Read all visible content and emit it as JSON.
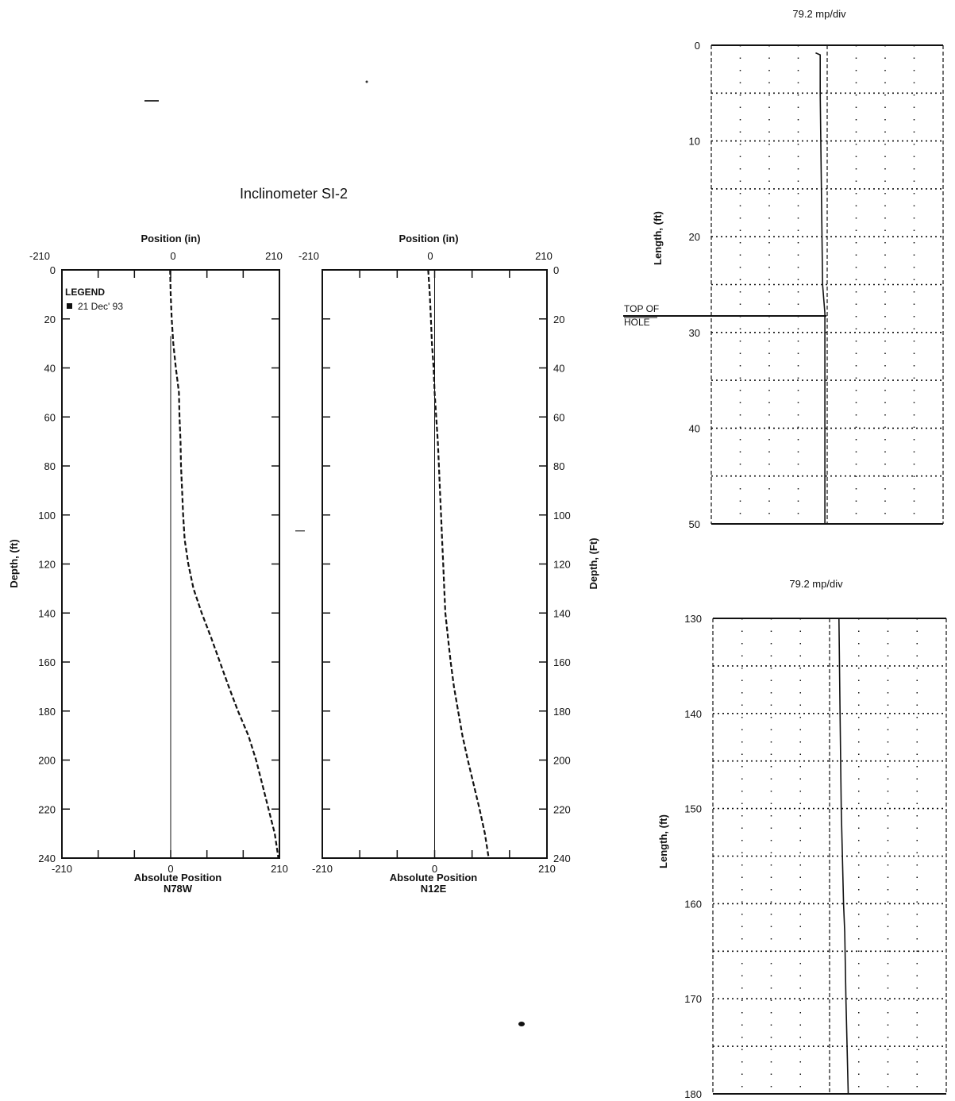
{
  "page": {
    "title": "Inclinometer SI-2"
  },
  "chart_data": [
    {
      "type": "line",
      "panel": "left-inclinometer",
      "top_axis_label": "Position  (in)",
      "ylabel": "Depth,  (ft)",
      "xlabel_lines": [
        "Absolute Position",
        "N78W"
      ],
      "xlim": [
        -210,
        210
      ],
      "ylim": [
        0,
        240
      ],
      "y_inverted": true,
      "x_tick_labels_top": [
        "-210",
        "0",
        "210"
      ],
      "x_tick_labels_bottom": [
        "-210",
        "0",
        "210"
      ],
      "y_tick_labels": [
        "0",
        "20",
        "40",
        "60",
        "80",
        "100",
        "120",
        "140",
        "160",
        "180",
        "200",
        "220",
        "240"
      ],
      "legend": {
        "title": "LEGEND",
        "entries": [
          "21 Dec' 93"
        ],
        "placement": "top-left"
      },
      "series": [
        {
          "name": "21 Dec' 93",
          "style": "dashed",
          "points": [
            {
              "x": -1,
              "y": 0
            },
            {
              "x": 0,
              "y": 10
            },
            {
              "x": 2,
              "y": 20
            },
            {
              "x": 5,
              "y": 30
            },
            {
              "x": 10,
              "y": 40
            },
            {
              "x": 16,
              "y": 50
            },
            {
              "x": 17,
              "y": 60
            },
            {
              "x": 19,
              "y": 70
            },
            {
              "x": 20,
              "y": 80
            },
            {
              "x": 22,
              "y": 90
            },
            {
              "x": 24,
              "y": 100
            },
            {
              "x": 27,
              "y": 110
            },
            {
              "x": 34,
              "y": 120
            },
            {
              "x": 44,
              "y": 130
            },
            {
              "x": 60,
              "y": 140
            },
            {
              "x": 78,
              "y": 150
            },
            {
              "x": 95,
              "y": 160
            },
            {
              "x": 112,
              "y": 170
            },
            {
              "x": 130,
              "y": 180
            },
            {
              "x": 150,
              "y": 190
            },
            {
              "x": 165,
              "y": 200
            },
            {
              "x": 177,
              "y": 210
            },
            {
              "x": 189,
              "y": 220
            },
            {
              "x": 201,
              "y": 230
            },
            {
              "x": 208,
              "y": 240
            }
          ]
        }
      ],
      "reference_line": {
        "x": 0,
        "y_range": [
          27,
          240
        ]
      }
    },
    {
      "type": "line",
      "panel": "middle-inclinometer",
      "top_axis_label": "Position  (in)",
      "ylabel": "Depth,  (Ft)",
      "xlabel_lines": [
        "Absolute Position",
        "N12E"
      ],
      "xlim": [
        -210,
        210
      ],
      "ylim": [
        0,
        240
      ],
      "y_inverted": true,
      "x_tick_labels_top": [
        "-210",
        "0",
        "210"
      ],
      "x_tick_labels_bottom": [
        "-210",
        "0",
        "210"
      ],
      "y_tick_labels": [
        "0",
        "20",
        "40",
        "60",
        "80",
        "100",
        "120",
        "140",
        "160",
        "180",
        "200",
        "220",
        "240"
      ],
      "series": [
        {
          "name": "21 Dec' 93",
          "style": "dashed",
          "points": [
            {
              "x": -12,
              "y": 0
            },
            {
              "x": -9,
              "y": 10
            },
            {
              "x": -7,
              "y": 20
            },
            {
              "x": -5,
              "y": 30
            },
            {
              "x": -2,
              "y": 40
            },
            {
              "x": 0,
              "y": 50
            },
            {
              "x": 3,
              "y": 60
            },
            {
              "x": 6,
              "y": 70
            },
            {
              "x": 8,
              "y": 80
            },
            {
              "x": 10,
              "y": 90
            },
            {
              "x": 12,
              "y": 100
            },
            {
              "x": 14,
              "y": 110
            },
            {
              "x": 16,
              "y": 120
            },
            {
              "x": 18,
              "y": 130
            },
            {
              "x": 20,
              "y": 140
            },
            {
              "x": 25,
              "y": 150
            },
            {
              "x": 30,
              "y": 160
            },
            {
              "x": 36,
              "y": 170
            },
            {
              "x": 44,
              "y": 180
            },
            {
              "x": 52,
              "y": 190
            },
            {
              "x": 62,
              "y": 200
            },
            {
              "x": 73,
              "y": 210
            },
            {
              "x": 84,
              "y": 220
            },
            {
              "x": 94,
              "y": 230
            },
            {
              "x": 101,
              "y": 240
            }
          ]
        }
      ],
      "reference_line": {
        "x": 0,
        "y_range": [
          0,
          240
        ]
      }
    },
    {
      "type": "line",
      "panel": "upper-log",
      "title": "79.2 mp/div",
      "ylabel": "Length,  (ft)",
      "ylim": [
        0,
        50
      ],
      "y_inverted": true,
      "y_tick_labels": [
        "0",
        "10",
        "20",
        "30",
        "40",
        "50"
      ],
      "annotation_lines": [
        "TOP OF",
        "HOLE"
      ],
      "annotation_depth": 28,
      "series": [
        {
          "name": "",
          "points": [
            {
              "x": 0.45,
              "y": 0.8
            },
            {
              "x": 0.47,
              "y": 1.0
            },
            {
              "x": 0.47,
              "y": 5
            },
            {
              "x": 0.475,
              "y": 15
            },
            {
              "x": 0.48,
              "y": 25
            },
            {
              "x": 0.49,
              "y": 28
            },
            {
              "x": 0.49,
              "y": 50
            }
          ]
        }
      ]
    },
    {
      "type": "line",
      "panel": "lower-log",
      "title": "79.2 mp/div",
      "ylabel": "Length,  (ft)",
      "ylim": [
        130,
        180
      ],
      "y_inverted": true,
      "y_tick_labels": [
        "130",
        "140",
        "150",
        "160",
        "170",
        "180"
      ],
      "series": [
        {
          "name": "",
          "points": [
            {
              "x": 0.54,
              "y": 130
            },
            {
              "x": 0.545,
              "y": 140
            },
            {
              "x": 0.55,
              "y": 150
            },
            {
              "x": 0.56,
              "y": 160
            },
            {
              "x": 0.565,
              "y": 163
            },
            {
              "x": 0.57,
              "y": 170
            },
            {
              "x": 0.58,
              "y": 180
            }
          ]
        }
      ]
    }
  ]
}
